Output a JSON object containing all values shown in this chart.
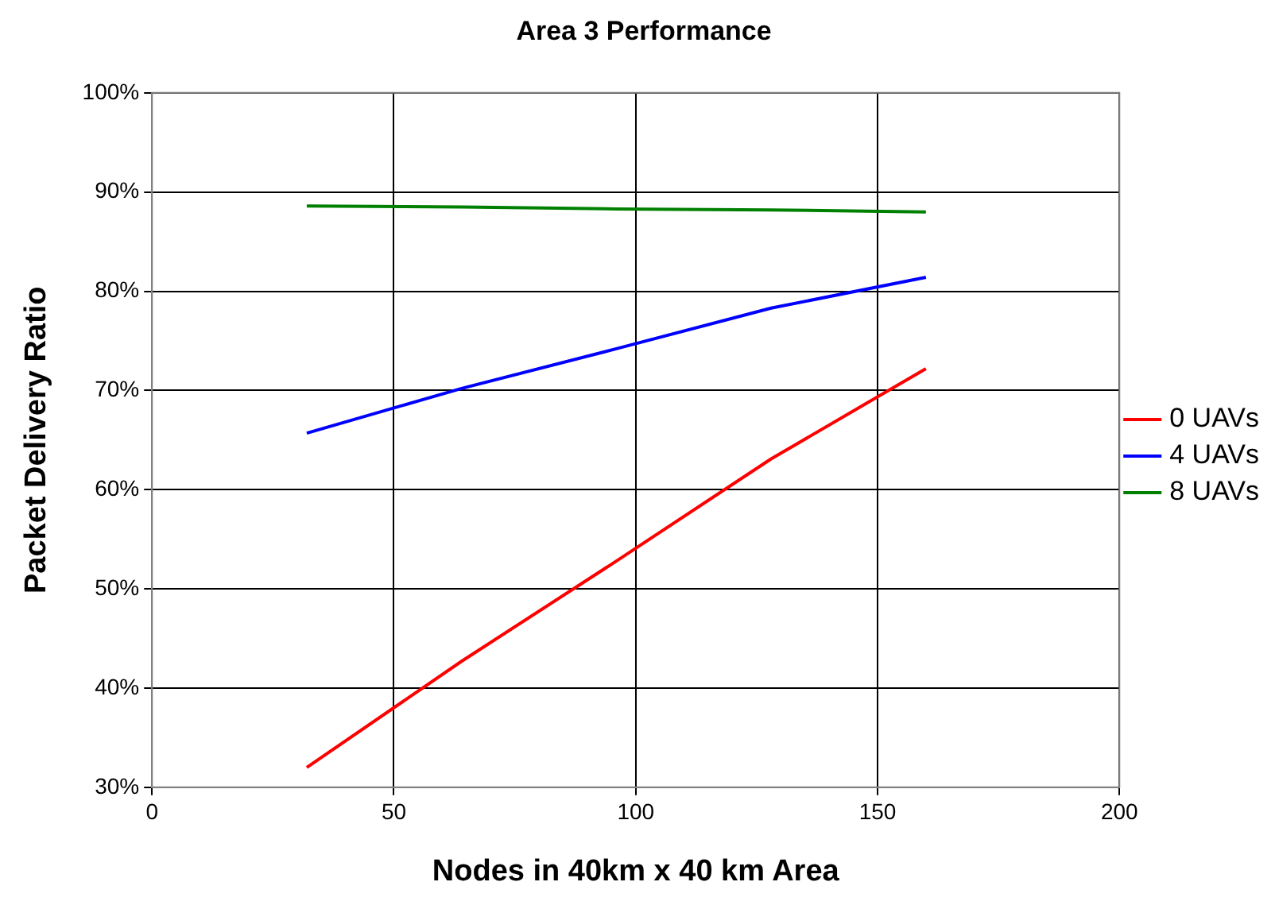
{
  "chart_data": {
    "type": "line",
    "title": "Area 3 Performance",
    "xlabel": "Nodes in 40km x 40 km Area",
    "ylabel": "Packet Delivery Ratio",
    "x": [
      32,
      64,
      96,
      128,
      160
    ],
    "series": [
      {
        "name": "0 UAVs",
        "color": "#ff0000",
        "values": [
          32.0,
          42.7,
          52.8,
          63.1,
          72.2
        ]
      },
      {
        "name": "4 UAVs",
        "color": "#0000ff",
        "values": [
          65.7,
          70.2,
          74.2,
          78.3,
          81.4
        ]
      },
      {
        "name": "8 UAVs",
        "color": "#008000",
        "values": [
          88.6,
          88.5,
          88.3,
          88.2,
          88.0
        ]
      }
    ],
    "xlim": [
      0,
      200
    ],
    "xticks": [
      0,
      50,
      100,
      150,
      200
    ],
    "ylim": [
      30,
      100
    ],
    "yticks": [
      {
        "value": 30,
        "label": "30%"
      },
      {
        "value": 40,
        "label": "40%"
      },
      {
        "value": 50,
        "label": "50%"
      },
      {
        "value": 60,
        "label": "60%"
      },
      {
        "value": 70,
        "label": "70%"
      },
      {
        "value": 80,
        "label": "80%"
      },
      {
        "value": 90,
        "label": "90%"
      },
      {
        "value": 100,
        "label": "100%"
      }
    ],
    "grid": true,
    "legend": "right",
    "marker": "none",
    "line_style": "solid"
  }
}
